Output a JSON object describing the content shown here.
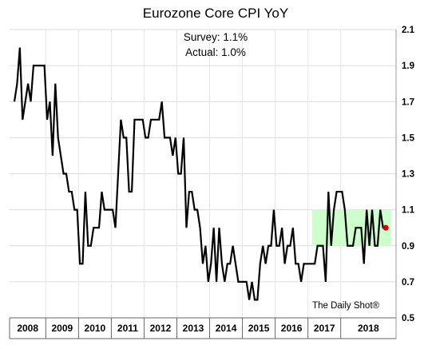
{
  "chart_data": {
    "type": "line",
    "title": "Eurozone Core CPI YoY",
    "annotations": {
      "survey": "Survey: 1.1%",
      "actual": "Actual:  1.0%"
    },
    "credit": "The Daily Shot®",
    "ylim": [
      0.5,
      2.1
    ],
    "yticks": [
      "0.5",
      "0.7",
      "0.9",
      "1.1",
      "1.3",
      "1.5",
      "1.7",
      "1.9",
      "2.1"
    ],
    "xtick_labels": [
      "2008",
      "2009",
      "2010",
      "2011",
      "2012",
      "2013",
      "2014",
      "2015",
      "2016",
      "2017",
      "2018"
    ],
    "grid": true,
    "band": {
      "from": 0.9,
      "to": 1.1,
      "start_month": 109,
      "color": "#ccffcc"
    },
    "line_color": "#000000",
    "latest_point_color": "#d40000",
    "series": [
      {
        "values": [
          1.7,
          1.8,
          2.0,
          1.6,
          1.7,
          1.8,
          1.7,
          1.9,
          1.9,
          1.9,
          1.9,
          1.9,
          1.6,
          1.7,
          1.4,
          1.8,
          1.5,
          1.4,
          1.3,
          1.3,
          1.2,
          1.2,
          1.1,
          1.1,
          0.8,
          0.8,
          1.2,
          0.9,
          0.9,
          1.0,
          1.0,
          1.0,
          1.2,
          1.1,
          1.1,
          1.1,
          1.1,
          1.0,
          1.3,
          1.6,
          1.5,
          1.5,
          1.2,
          1.2,
          1.6,
          1.6,
          1.6,
          1.6,
          1.5,
          1.5,
          1.6,
          1.6,
          1.6,
          1.6,
          1.7,
          1.5,
          1.5,
          1.5,
          1.4,
          1.5,
          1.3,
          1.3,
          1.5,
          1.0,
          1.2,
          1.2,
          1.1,
          1.1,
          1.0,
          0.8,
          0.9,
          0.7,
          0.8,
          1.0,
          0.7,
          1.0,
          0.8,
          0.7,
          0.8,
          0.8,
          0.9,
          0.8,
          0.7,
          0.7,
          0.7,
          0.7,
          0.6,
          0.7,
          0.6,
          0.6,
          0.8,
          0.9,
          0.8,
          0.9,
          0.9,
          1.1,
          0.9,
          0.9,
          1.0,
          0.8,
          0.9,
          0.9,
          1.0,
          0.8,
          0.8,
          0.7,
          0.8,
          0.8,
          0.8,
          0.8,
          0.8,
          0.9,
          0.9,
          0.9,
          0.7,
          1.2,
          0.9,
          1.1,
          1.2,
          1.2,
          1.2,
          1.1,
          0.9,
          0.9,
          0.9,
          1.0,
          1.0,
          1.0,
          0.8,
          1.1,
          0.9,
          1.1,
          0.9,
          0.9,
          1.1,
          1.0,
          1.0
        ]
      }
    ]
  }
}
